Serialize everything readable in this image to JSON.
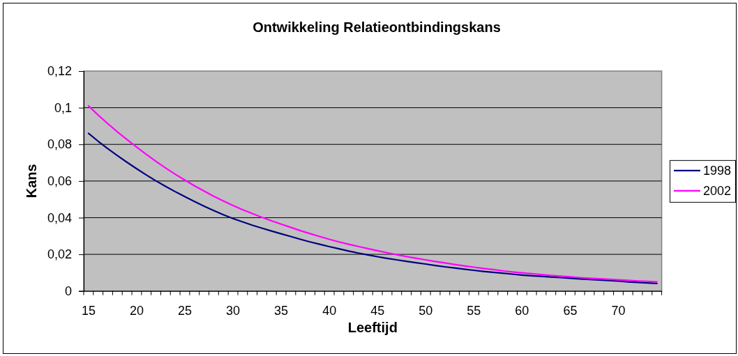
{
  "chart_data": {
    "type": "line",
    "title": "Ontwikkeling Relatieontbindingskans",
    "xlabel": "Leeftijd",
    "ylabel": "Kans",
    "categories": [
      "15",
      null,
      null,
      null,
      null,
      "20",
      null,
      null,
      null,
      null,
      "25",
      null,
      null,
      null,
      null,
      "30",
      null,
      null,
      null,
      null,
      "35",
      null,
      null,
      null,
      null,
      "40",
      null,
      null,
      null,
      null,
      "45",
      null,
      null,
      null,
      null,
      "50",
      null,
      null,
      null,
      null,
      "55",
      null,
      null,
      null,
      null,
      "60",
      null,
      null,
      null,
      null,
      "65",
      null,
      null,
      null,
      null,
      "70",
      null,
      null,
      null,
      null
    ],
    "series": [
      {
        "name": "1998",
        "color": "#000080",
        "values": [
          0.086,
          0.0817,
          0.0777,
          0.0739,
          0.0702,
          0.0667,
          0.0633,
          0.0601,
          0.0571,
          0.0542,
          0.0515,
          0.0488,
          0.0463,
          0.0439,
          0.0416,
          0.0395,
          0.0377,
          0.0359,
          0.0343,
          0.0327,
          0.0312,
          0.0297,
          0.0282,
          0.0268,
          0.0255,
          0.0242,
          0.023,
          0.0218,
          0.0207,
          0.0197,
          0.0187,
          0.0178,
          0.017,
          0.0162,
          0.0154,
          0.0147,
          0.0139,
          0.0132,
          0.0126,
          0.0119,
          0.0113,
          0.0107,
          0.0102,
          0.0097,
          0.0092,
          0.0087,
          0.0083,
          0.008,
          0.0076,
          0.0073,
          0.007,
          0.0066,
          0.0063,
          0.006,
          0.0057,
          0.0054,
          0.005,
          0.0047,
          0.0044,
          0.0041
        ]
      },
      {
        "name": "2002",
        "color": "#ff00ff",
        "values": [
          0.101,
          0.096,
          0.0913,
          0.0868,
          0.0826,
          0.0785,
          0.0745,
          0.0707,
          0.0671,
          0.0637,
          0.0605,
          0.0574,
          0.0545,
          0.0517,
          0.0491,
          0.0466,
          0.0444,
          0.0423,
          0.0402,
          0.0383,
          0.0365,
          0.0347,
          0.0329,
          0.0313,
          0.0297,
          0.0282,
          0.0268,
          0.0255,
          0.0243,
          0.0231,
          0.022,
          0.0209,
          0.0198,
          0.0188,
          0.0179,
          0.017,
          0.0161,
          0.0153,
          0.0145,
          0.0137,
          0.013,
          0.0123,
          0.0117,
          0.011,
          0.0104,
          0.0099,
          0.0094,
          0.009,
          0.0085,
          0.0081,
          0.0077,
          0.0073,
          0.007,
          0.0067,
          0.0064,
          0.0061,
          0.0058,
          0.0055,
          0.0053,
          0.005
        ]
      }
    ],
    "ylim": [
      0,
      0.12
    ],
    "yticks": [
      0,
      {
        "value": 0.02,
        "label": "0,02"
      },
      {
        "value": 0.04,
        "label": "0,04"
      },
      {
        "value": 0.06,
        "label": "0,06"
      },
      {
        "value": 0.08,
        "label": "0,08"
      },
      {
        "value": 0.1,
        "label": "0,1"
      },
      {
        "value": 0.12,
        "label": "0,12"
      }
    ],
    "grid": "y",
    "legend": "right"
  }
}
